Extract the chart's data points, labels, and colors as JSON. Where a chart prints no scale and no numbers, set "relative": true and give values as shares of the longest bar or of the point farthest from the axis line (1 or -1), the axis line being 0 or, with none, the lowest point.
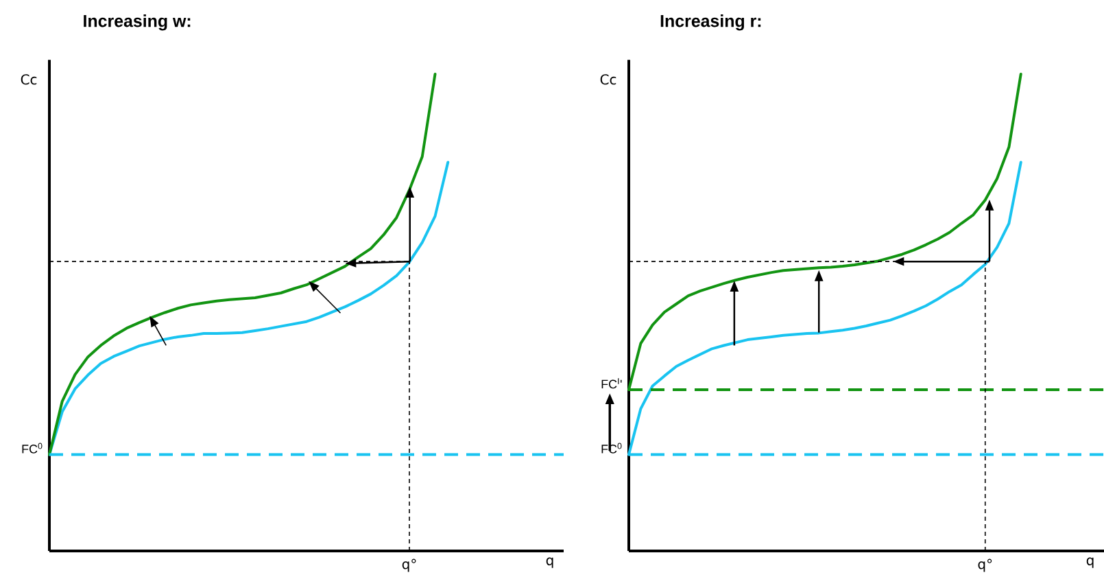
{
  "chart_data": [
    {
      "type": "line",
      "title": "Increasing w:",
      "xlabel": "q",
      "ylabel": "Cc",
      "relative": true,
      "line_style": "solid",
      "categories": [
        null,
        null,
        null,
        null,
        null,
        null,
        null,
        null,
        null,
        null,
        null,
        null,
        null,
        null,
        null,
        null,
        null,
        null,
        null,
        null,
        null,
        null,
        null,
        null,
        null,
        null,
        null,
        null,
        null,
        null,
        null,
        null,
        null,
        null,
        null,
        null,
        null,
        null,
        null,
        null,
        null
      ],
      "annotations": [
        "q°"
      ],
      "series": [
        {
          "color": "#19c3f0",
          "values": [
            0.202,
            0.292,
            0.34,
            0.369,
            0.393,
            0.408,
            0.419,
            0.43,
            0.437,
            0.444,
            0.449,
            0.452,
            0.456,
            0.456,
            0.457,
            0.458,
            0.462,
            0.466,
            0.471,
            0.476,
            0.481,
            0.49,
            0.501,
            0.512,
            0.525,
            0.539,
            0.557,
            0.577,
            0.606,
            0.647,
            0.702,
            0.815,
            null,
            null,
            null,
            null,
            null,
            null,
            null,
            null,
            null
          ]
        },
        {
          "color": "#129412",
          "values": [
            0.202,
            0.314,
            0.37,
            0.407,
            0.431,
            0.451,
            0.467,
            0.479,
            0.49,
            0.5,
            0.509,
            0.516,
            0.52,
            0.524,
            0.527,
            0.529,
            0.531,
            0.536,
            0.541,
            0.55,
            0.558,
            0.571,
            0.584,
            0.597,
            0.616,
            0.634,
            0.663,
            0.699,
            0.757,
            0.827,
            1,
            null,
            null,
            null,
            null,
            null,
            null,
            null,
            null,
            null,
            null
          ]
        }
      ],
      "ref_lines": [
        {
          "axis": "y",
          "value": 0.202,
          "label": "FC$^{0}$",
          "color": "#19c3f0",
          "line_style": "dashed"
        },
        {
          "axis": "y",
          "value": 0.607,
          "color": "#000000",
          "line_style": "dashed"
        }
      ]
    },
    {
      "type": "line",
      "title": "Increasing r:",
      "xlabel": "q",
      "ylabel": "Cc",
      "relative": true,
      "line_style": "solid",
      "categories": [
        null,
        null,
        null,
        null,
        null,
        null,
        null,
        null,
        null,
        null,
        null,
        null,
        null,
        null,
        null,
        null,
        null,
        null,
        null,
        null,
        null,
        null,
        null,
        null,
        null,
        null,
        null,
        null,
        null,
        null,
        null,
        null,
        null,
        null,
        null,
        null,
        null,
        null,
        null,
        null,
        null
      ],
      "annotations": [
        "q°"
      ],
      "series": [
        {
          "color": "#19c3f0",
          "values": [
            0.202,
            0.298,
            0.346,
            0.367,
            0.387,
            0.4,
            0.412,
            0.424,
            0.431,
            0.437,
            0.443,
            0.446,
            0.449,
            0.452,
            0.454,
            0.456,
            0.457,
            0.46,
            0.463,
            0.467,
            0.472,
            0.478,
            0.484,
            0.493,
            0.503,
            0.514,
            0.528,
            0.544,
            0.558,
            0.58,
            0.601,
            0.637,
            0.687,
            0.815,
            null,
            null,
            null,
            null,
            null,
            null,
            null
          ]
        },
        {
          "color": "#129412",
          "values": [
            0.338,
            0.435,
            0.474,
            0.501,
            0.518,
            0.535,
            0.545,
            0.553,
            0.561,
            0.568,
            0.574,
            0.579,
            0.584,
            0.588,
            0.59,
            0.592,
            0.594,
            0.595,
            0.597,
            0.6,
            0.604,
            0.608,
            0.615,
            0.622,
            0.631,
            0.642,
            0.654,
            0.668,
            0.687,
            0.705,
            0.736,
            0.781,
            0.847,
            1,
            null,
            null,
            null,
            null,
            null,
            null,
            null
          ]
        }
      ],
      "ref_lines": [
        {
          "axis": "y",
          "value": 0.202,
          "label": "FC$^{0}$",
          "color": "#19c3f0",
          "line_style": "dashed"
        },
        {
          "axis": "y",
          "value": 0.338,
          "label": "FC$^{I}$'",
          "color": "#129412",
          "line_style": "dashed"
        },
        {
          "axis": "y",
          "value": 0.607,
          "color": "#000000",
          "line_style": "dashed"
        }
      ]
    }
  ]
}
